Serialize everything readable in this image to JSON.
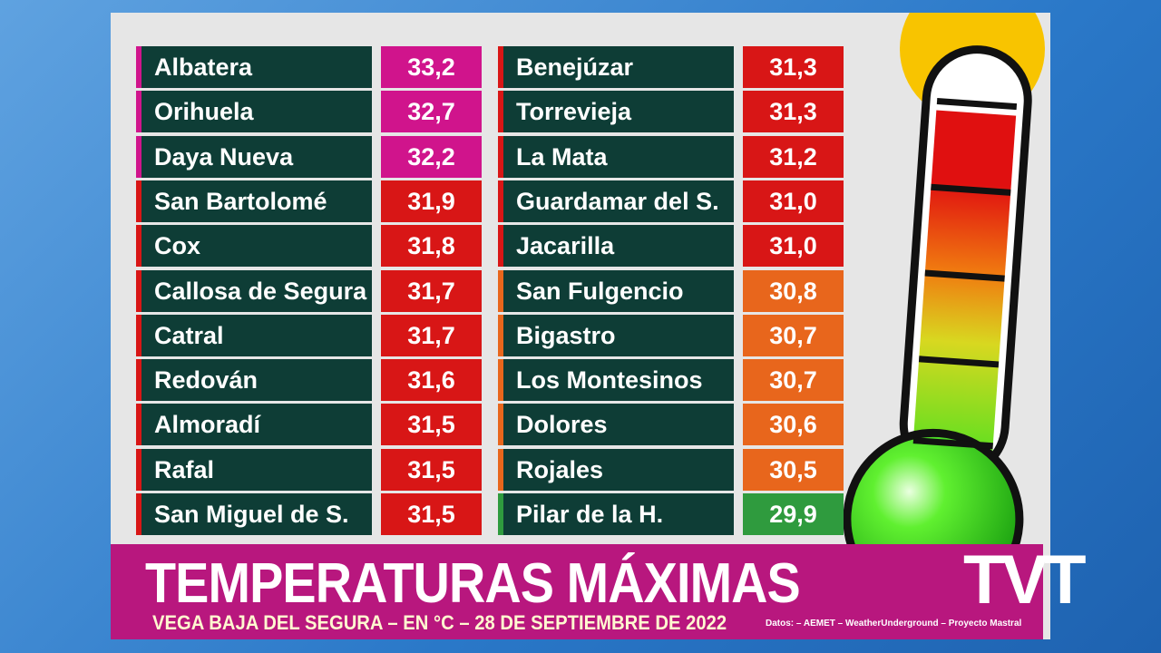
{
  "table": {
    "left": [
      {
        "name": "Albatera",
        "value": "33,2",
        "color": "#d0148c"
      },
      {
        "name": "Orihuela",
        "value": "32,7",
        "color": "#d0148c"
      },
      {
        "name": "Daya Nueva",
        "value": "32,2",
        "color": "#d0148c"
      },
      {
        "name": "San Bartolomé",
        "value": "31,9",
        "color": "#d81616"
      },
      {
        "name": "Cox",
        "value": "31,8",
        "color": "#d81616"
      },
      {
        "name": "Callosa de Segura",
        "value": "31,7",
        "color": "#d81616"
      },
      {
        "name": "Catral",
        "value": "31,7",
        "color": "#d81616"
      },
      {
        "name": "Redován",
        "value": "31,6",
        "color": "#d81616"
      },
      {
        "name": "Almoradí",
        "value": "31,5",
        "color": "#d81616"
      },
      {
        "name": "Rafal",
        "value": "31,5",
        "color": "#d81616"
      },
      {
        "name": "San Miguel de S.",
        "value": "31,5",
        "color": "#d81616"
      }
    ],
    "right": [
      {
        "name": "Benejúzar",
        "value": "31,3",
        "color": "#d81616"
      },
      {
        "name": "Torrevieja",
        "value": "31,3",
        "color": "#d81616"
      },
      {
        "name": "La Mata",
        "value": "31,2",
        "color": "#d81616"
      },
      {
        "name": "Guardamar del S.",
        "value": "31,0",
        "color": "#d81616"
      },
      {
        "name": "Jacarilla",
        "value": "31,0",
        "color": "#d81616"
      },
      {
        "name": "San Fulgencio",
        "value": "30,8",
        "color": "#e8661c"
      },
      {
        "name": "Bigastro",
        "value": "30,7",
        "color": "#e8661c"
      },
      {
        "name": "Los Montesinos",
        "value": "30,7",
        "color": "#e8661c"
      },
      {
        "name": "Dolores",
        "value": "30,6",
        "color": "#e8661c"
      },
      {
        "name": "Rojales",
        "value": "30,5",
        "color": "#e8661c"
      },
      {
        "name": "Pilar de la H.",
        "value": "29,9",
        "color": "#2f9b3e"
      }
    ]
  },
  "banner": {
    "title": "TEMPERATURAS MÁXIMAS",
    "subtitle": "VEGA BAJA DEL SEGURA – EN °C – 28 DE SEPTIEMBRE DE 2022",
    "source": "Datos:  – AEMET – WeatherUnderground – Proyecto Mastral"
  },
  "logo": "TVT"
}
